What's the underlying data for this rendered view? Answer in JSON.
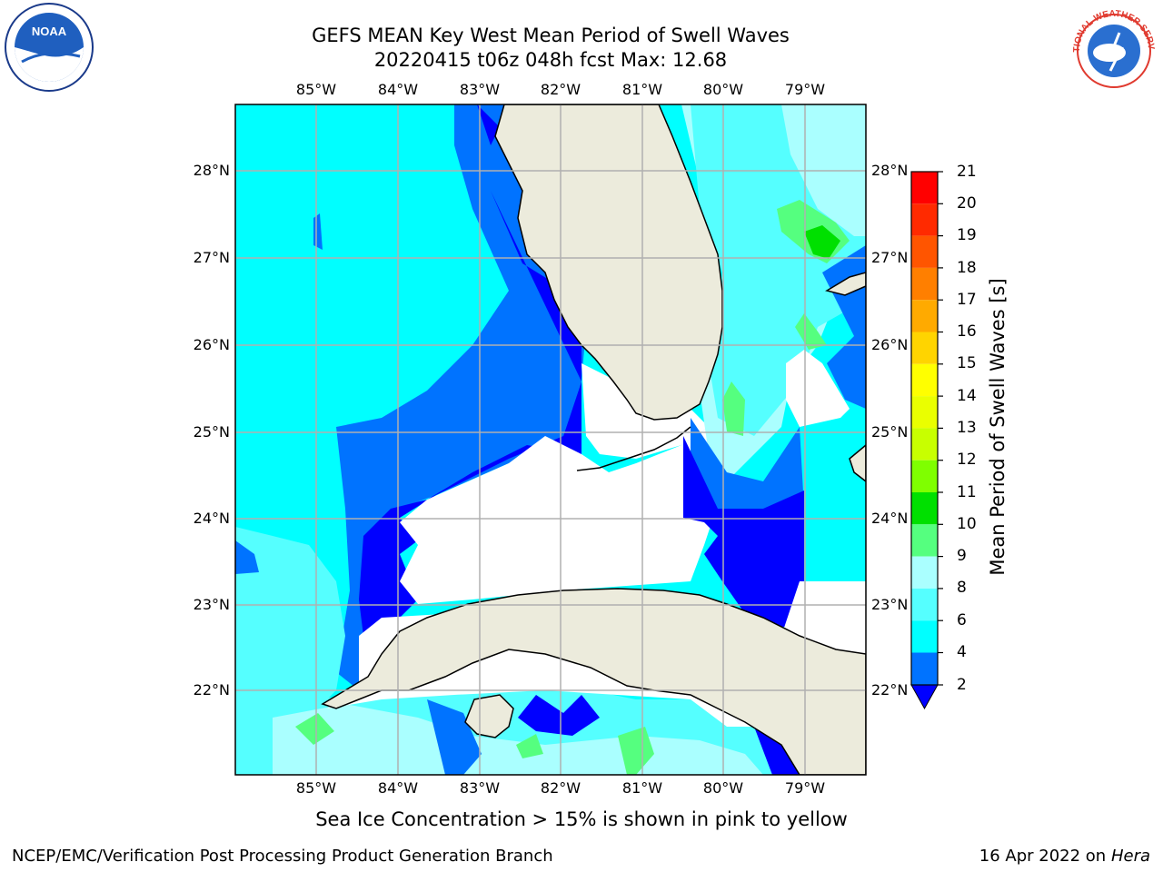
{
  "header": {
    "title_line1": "GEFS MEAN Key West Mean Period of Swell Waves",
    "title_line2": "20220415 t06z 048h fcst   Max: 12.68"
  },
  "logos": {
    "noaa_text": "NOAA",
    "nws_text": "NATIONAL WEATHER SERVICE"
  },
  "map": {
    "lon_labels": [
      "85°W",
      "84°W",
      "83°W",
      "82°W",
      "81°W",
      "80°W",
      "79°W"
    ],
    "lat_labels": [
      "28°N",
      "27°N",
      "26°N",
      "25°N",
      "24°N",
      "23°N",
      "22°N"
    ],
    "land_color": "#ecebdc",
    "ocean_colors": {
      "cyan_4_6": "#00ffff",
      "light_cyan_6_8": "#55ffff",
      "pale_cyan_8_9": "#aaffff",
      "blue_2_4": "#0073ff",
      "dark_blue_lt2": "#0000ff",
      "green_9_10": "#55ff7f",
      "green_10_11": "#00e000"
    }
  },
  "colorbar": {
    "label": "Mean Period of Swell Waves [s]",
    "ticks": [
      "21",
      "20",
      "19",
      "18",
      "17",
      "16",
      "15",
      "14",
      "13",
      "12",
      "11",
      "10",
      "9",
      "8",
      "6",
      "4",
      "2"
    ],
    "colors": [
      "#ff0000",
      "#ff2a00",
      "#ff5500",
      "#ff7f00",
      "#ffaa00",
      "#ffd400",
      "#ffff00",
      "#eaff00",
      "#c8ff00",
      "#7fff00",
      "#00e000",
      "#55ff7f",
      "#aaffff",
      "#55ffff",
      "#00ffff",
      "#0073ff"
    ],
    "extend_color": "#0000ff"
  },
  "notes": {
    "sea_ice": "Sea Ice Concentration > 15% is shown in pink to yellow"
  },
  "footer": {
    "left": "NCEP/EMC/Verification Post Processing Product Generation Branch",
    "date": "16 Apr 2022 on ",
    "host": "Hera"
  }
}
